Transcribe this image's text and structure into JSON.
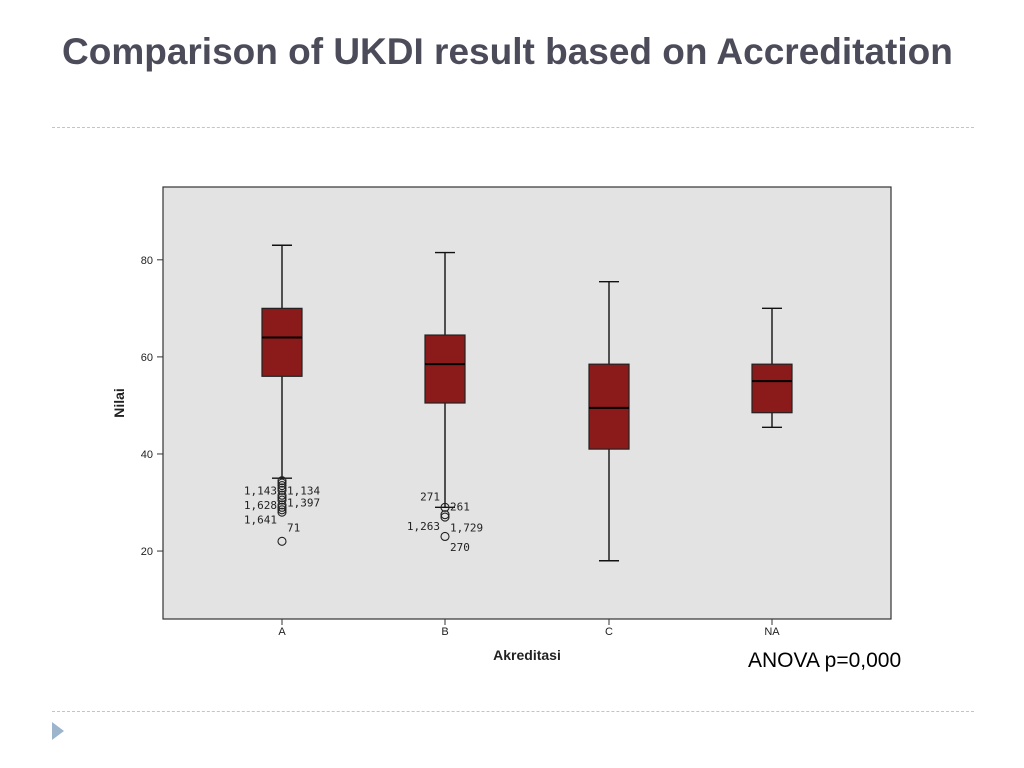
{
  "slide": {
    "title": "Comparison of UKDI result based on Accreditation",
    "annotation": "ANOVA p=0,000",
    "bullet_icon": "triangle-bullet-icon"
  },
  "colors": {
    "title": "#4b4b5a",
    "plot_background": "#e3e3e3",
    "box_fill": "#8b1a1a",
    "rule": "#b9c6d6",
    "bullet": "#9db4cd"
  },
  "chart_data": {
    "type": "boxplot",
    "xlabel": "Akreditasi",
    "ylabel": "Nilai",
    "categories": [
      "A",
      "B",
      "C",
      "NA"
    ],
    "y_ticks": [
      20,
      40,
      60,
      80
    ],
    "ylim": [
      6,
      95
    ],
    "grid": false,
    "legend": "none",
    "boxes": [
      {
        "category": "A",
        "whisker_low": 35,
        "q1": 56,
        "median": 64,
        "q3": 70,
        "whisker_high": 83
      },
      {
        "category": "B",
        "whisker_low": 29,
        "q1": 50.5,
        "median": 58.5,
        "q3": 64.5,
        "whisker_high": 81.5
      },
      {
        "category": "C",
        "whisker_low": 18,
        "q1": 41,
        "median": 49.5,
        "q3": 58.5,
        "whisker_high": 75.5
      },
      {
        "category": "NA",
        "whisker_low": 45.5,
        "q1": 48.5,
        "median": 55,
        "q3": 58.5,
        "whisker_high": 70
      }
    ],
    "outliers": [
      {
        "category": "A",
        "values": [
          34.5,
          34,
          33.5,
          33,
          32.5,
          31.5,
          31,
          30.5,
          29.5,
          29,
          28.5,
          28,
          22
        ]
      },
      {
        "category": "B",
        "values": [
          29,
          27.5,
          27,
          23
        ]
      }
    ],
    "outlier_labels": [
      {
        "category": "A",
        "text": "1,143",
        "side": "left",
        "y": 32.5
      },
      {
        "category": "A",
        "text": "1,134",
        "side": "right",
        "y": 32.5
      },
      {
        "category": "A",
        "text": "1,628",
        "side": "left",
        "y": 29.5
      },
      {
        "category": "A",
        "text": "1,397",
        "side": "right",
        "y": 30
      },
      {
        "category": "A",
        "text": "1,641",
        "side": "left",
        "y": 26.5
      },
      {
        "category": "A",
        "text": "71",
        "side": "right",
        "y": 24.8
      },
      {
        "category": "B",
        "text": "271",
        "side": "left",
        "y": 31.2
      },
      {
        "category": "B",
        "text": "261",
        "side": "right",
        "y": 29.2
      },
      {
        "category": "B",
        "text": "1,263",
        "side": "left",
        "y": 25.2
      },
      {
        "category": "B",
        "text": "1,729",
        "side": "right",
        "y": 24.8
      },
      {
        "category": "B",
        "text": "270",
        "side": "right",
        "y": 20.8
      }
    ]
  }
}
